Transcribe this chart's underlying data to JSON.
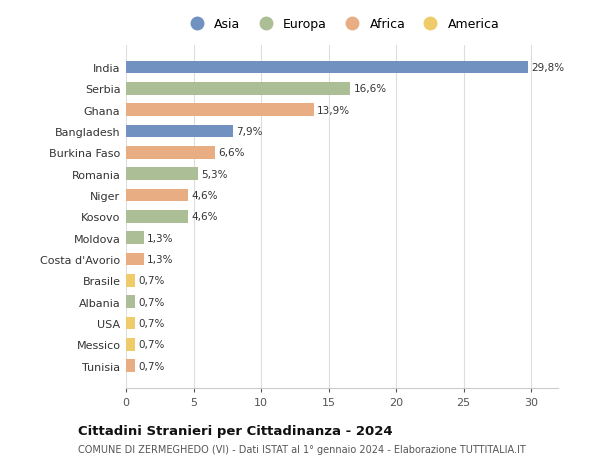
{
  "countries": [
    "India",
    "Serbia",
    "Ghana",
    "Bangladesh",
    "Burkina Faso",
    "Romania",
    "Niger",
    "Kosovo",
    "Moldova",
    "Costa d'Avorio",
    "Brasile",
    "Albania",
    "USA",
    "Messico",
    "Tunisia"
  ],
  "values": [
    29.8,
    16.6,
    13.9,
    7.9,
    6.6,
    5.3,
    4.6,
    4.6,
    1.3,
    1.3,
    0.7,
    0.7,
    0.7,
    0.7,
    0.7
  ],
  "labels": [
    "29,8%",
    "16,6%",
    "13,9%",
    "7,9%",
    "6,6%",
    "5,3%",
    "4,6%",
    "4,6%",
    "1,3%",
    "1,3%",
    "0,7%",
    "0,7%",
    "0,7%",
    "0,7%",
    "0,7%"
  ],
  "continents": [
    "Asia",
    "Europa",
    "Africa",
    "Asia",
    "Africa",
    "Europa",
    "Africa",
    "Europa",
    "Europa",
    "Africa",
    "America",
    "Europa",
    "America",
    "America",
    "Africa"
  ],
  "colors": {
    "Asia": "#7191c0",
    "Europa": "#abbe96",
    "Africa": "#e8ad82",
    "America": "#f0cb6a"
  },
  "legend_order": [
    "Asia",
    "Europa",
    "Africa",
    "America"
  ],
  "title": "Cittadini Stranieri per Cittadinanza - 2024",
  "subtitle": "COMUNE DI ZERMEGHEDO (VI) - Dati ISTAT al 1° gennaio 2024 - Elaborazione TUTTITALIA.IT",
  "xlim": [
    0,
    32
  ],
  "xticks": [
    0,
    5,
    10,
    15,
    20,
    25,
    30
  ],
  "bg_color": "#ffffff",
  "grid_color": "#dddddd"
}
